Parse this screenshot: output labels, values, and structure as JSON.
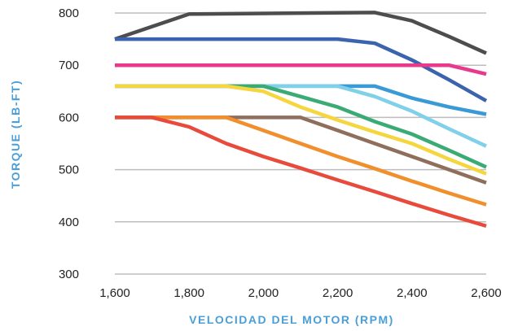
{
  "chart_data": {
    "type": "line",
    "xlabel": "VELOCIDAD DEL MOTOR (RPM)",
    "ylabel": "TORQUE (LB-FT)",
    "xlim": [
      1600,
      2600
    ],
    "ylim": [
      300,
      800
    ],
    "x_ticks": [
      1600,
      1800,
      2000,
      2200,
      2400,
      2600
    ],
    "x_tick_labels": [
      "1,600",
      "1,800",
      "2,000",
      "2,200",
      "2,400",
      "2,600"
    ],
    "y_ticks": [
      300,
      400,
      500,
      600,
      700,
      800
    ],
    "y_tick_labels": [
      "300",
      "400",
      "500",
      "600",
      "700",
      "800"
    ],
    "grid": true,
    "axis_title_color": "#4a9fd8",
    "series": [
      {
        "color": "#4d4d4f",
        "points": [
          [
            1600,
            750
          ],
          [
            1800,
            798
          ],
          [
            2300,
            801
          ],
          [
            2400,
            785
          ],
          [
            2500,
            755
          ],
          [
            2600,
            723
          ]
        ]
      },
      {
        "color": "#3b63ae",
        "points": [
          [
            1600,
            750
          ],
          [
            2200,
            750
          ],
          [
            2300,
            742
          ],
          [
            2400,
            710
          ],
          [
            2500,
            672
          ],
          [
            2600,
            632
          ]
        ]
      },
      {
        "color": "#e8398c",
        "points": [
          [
            1600,
            700
          ],
          [
            2500,
            700
          ],
          [
            2600,
            683
          ]
        ]
      },
      {
        "color": "#3a9ad6",
        "points": [
          [
            1600,
            660
          ],
          [
            2300,
            660
          ],
          [
            2400,
            637
          ],
          [
            2500,
            620
          ],
          [
            2600,
            606
          ]
        ]
      },
      {
        "color": "#7fd0e8",
        "points": [
          [
            1600,
            660
          ],
          [
            2200,
            660
          ],
          [
            2300,
            640
          ],
          [
            2400,
            612
          ],
          [
            2500,
            578
          ],
          [
            2600,
            545
          ]
        ]
      },
      {
        "color": "#3aab74",
        "points": [
          [
            1600,
            660
          ],
          [
            2000,
            660
          ],
          [
            2100,
            640
          ],
          [
            2200,
            620
          ],
          [
            2300,
            592
          ],
          [
            2400,
            568
          ],
          [
            2500,
            537
          ],
          [
            2600,
            505
          ]
        ]
      },
      {
        "color": "#f5d63e",
        "points": [
          [
            1600,
            660
          ],
          [
            1900,
            660
          ],
          [
            2000,
            650
          ],
          [
            2100,
            620
          ],
          [
            2200,
            595
          ],
          [
            2300,
            572
          ],
          [
            2400,
            550
          ],
          [
            2500,
            520
          ],
          [
            2600,
            492
          ]
        ]
      },
      {
        "color": "#8f6f5c",
        "points": [
          [
            1600,
            600
          ],
          [
            2100,
            600
          ],
          [
            2200,
            575
          ],
          [
            2300,
            550
          ],
          [
            2400,
            525
          ],
          [
            2500,
            500
          ],
          [
            2600,
            475
          ]
        ]
      },
      {
        "color": "#f18f2c",
        "points": [
          [
            1600,
            600
          ],
          [
            1900,
            600
          ],
          [
            2000,
            575
          ],
          [
            2100,
            550
          ],
          [
            2200,
            525
          ],
          [
            2300,
            502
          ],
          [
            2400,
            478
          ],
          [
            2500,
            455
          ],
          [
            2600,
            433
          ]
        ]
      },
      {
        "color": "#e84b3c",
        "points": [
          [
            1600,
            600
          ],
          [
            1700,
            600
          ],
          [
            1800,
            582
          ],
          [
            1900,
            550
          ],
          [
            2000,
            525
          ],
          [
            2100,
            503
          ],
          [
            2200,
            480
          ],
          [
            2300,
            458
          ],
          [
            2400,
            435
          ],
          [
            2500,
            413
          ],
          [
            2600,
            392
          ]
        ]
      }
    ]
  }
}
